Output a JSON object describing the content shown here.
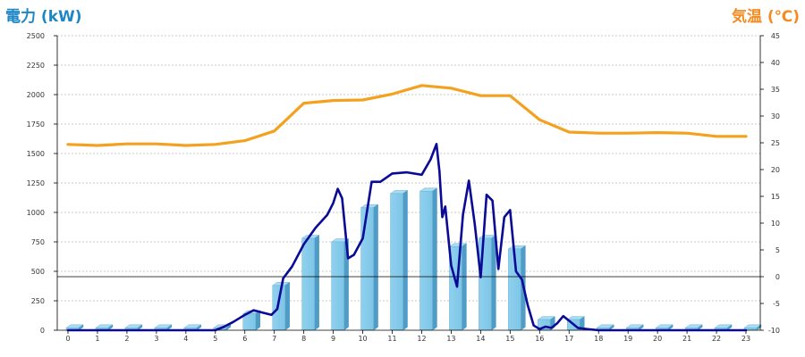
{
  "chart_data": {
    "type": "bar+line",
    "left_axis_title": "電力 (kW)",
    "right_axis_title": "気温 (℃)",
    "left_axis_ticks": [
      "0",
      "250",
      "500",
      "750",
      "1000",
      "1250",
      "1500",
      "1750",
      "2000",
      "2250",
      "2500"
    ],
    "right_axis_ticks": [
      "-10",
      "-5",
      "0",
      "5",
      "10",
      "15",
      "20",
      "25",
      "30",
      "35",
      "40",
      "45"
    ],
    "x_ticks": [
      "0",
      "1",
      "2",
      "3",
      "4",
      "5",
      "6",
      "7",
      "8",
      "9",
      "10",
      "11",
      "12",
      "13",
      "14",
      "15",
      "16",
      "17",
      "18",
      "19",
      "20",
      "21",
      "22",
      "23"
    ],
    "ylim_left": [
      0,
      2500
    ],
    "ylim_right": [
      -10,
      45
    ],
    "grid": true,
    "bars": {
      "name": "power_hourly",
      "color": "#87ceeb",
      "values": [
        20,
        20,
        20,
        20,
        20,
        20,
        140,
        380,
        780,
        750,
        1040,
        1160,
        1180,
        710,
        780,
        690,
        90,
        90,
        20,
        20,
        20,
        20,
        20,
        20
      ]
    },
    "power_line": {
      "color": "#0a0a96",
      "x": [
        0,
        1,
        2,
        3,
        4,
        5,
        5.3,
        5.6,
        6,
        6.3,
        6.6,
        6.9,
        7.1,
        7.3,
        7.6,
        8,
        8.4,
        8.8,
        9,
        9.15,
        9.3,
        9.5,
        9.7,
        10,
        10.3,
        10.6,
        11,
        11.5,
        12,
        12.3,
        12.5,
        12.6,
        12.7,
        12.8,
        13,
        13.2,
        13.4,
        13.6,
        13.8,
        14,
        14.2,
        14.4,
        14.6,
        14.8,
        15,
        15.2,
        15.4,
        15.6,
        15.8,
        16,
        16.2,
        16.4,
        16.6,
        16.8,
        17,
        17.3,
        17.6,
        18,
        19,
        20,
        21,
        22,
        23
      ],
      "y": [
        0,
        0,
        0,
        0,
        0,
        0,
        30,
        70,
        130,
        170,
        150,
        130,
        180,
        440,
        540,
        730,
        870,
        980,
        1080,
        1200,
        1120,
        610,
        640,
        780,
        1260,
        1260,
        1330,
        1340,
        1320,
        1450,
        1580,
        1350,
        960,
        1050,
        550,
        370,
        980,
        1270,
        900,
        450,
        1150,
        1100,
        520,
        960,
        1020,
        500,
        430,
        210,
        40,
        10,
        30,
        20,
        60,
        120,
        80,
        20,
        10,
        0,
        0,
        0,
        0,
        0,
        0
      ]
    },
    "temperature_line": {
      "color": "#f4a11f",
      "x": [
        0,
        1,
        2,
        3,
        4,
        5,
        6,
        7,
        8,
        9,
        10,
        11,
        12,
        13,
        14,
        15,
        16,
        17,
        18,
        19,
        20,
        21,
        22,
        23
      ],
      "y": [
        24.7,
        24.5,
        24.8,
        24.8,
        24.5,
        24.7,
        25.4,
        27.2,
        32.4,
        32.9,
        33.0,
        34.1,
        35.7,
        35.2,
        33.8,
        33.8,
        29.3,
        27.0,
        26.8,
        26.8,
        26.9,
        26.8,
        26.2,
        26.2
      ]
    }
  }
}
